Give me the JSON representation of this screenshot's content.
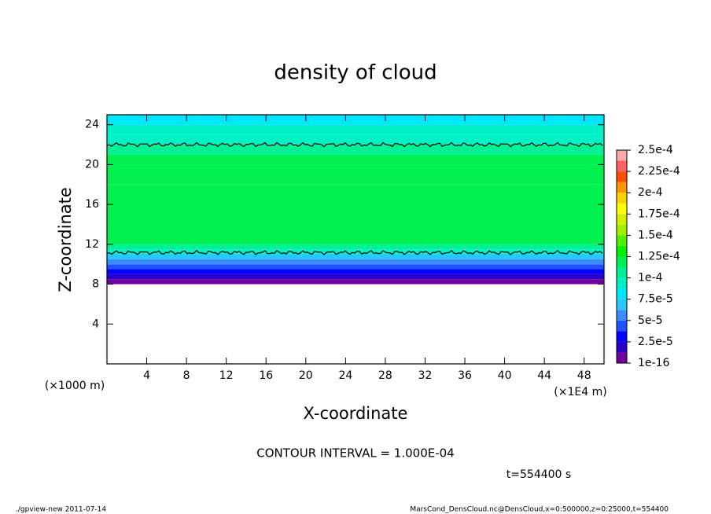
{
  "chart_data": {
    "type": "contour",
    "title": "density of cloud",
    "x_label": "X-coordinate",
    "y_label": "Z-coordinate",
    "x_unit_label": "(×1E4 m)",
    "y_unit_label": "(×1000 m)",
    "xlim": [
      0,
      50
    ],
    "xticks": [
      4,
      8,
      12,
      16,
      20,
      24,
      28,
      32,
      36,
      40,
      44,
      48
    ],
    "ylim": [
      0,
      25
    ],
    "yticks": [
      4,
      8,
      12,
      16,
      20,
      24
    ],
    "z": [
      8,
      8.5,
      9,
      9.5,
      10,
      10.5,
      11,
      11.5,
      12,
      14,
      18,
      20,
      21,
      22,
      23,
      24
    ],
    "values": [
      1e-05,
      1.5e-05,
      3e-05,
      4.5e-05,
      6e-05,
      7.5e-05,
      9.5e-05,
      0.00011,
      0.00012,
      0.000125,
      0.000125,
      0.00012,
      0.00011,
      0.0001,
      9e-05,
      8e-05
    ],
    "colorbar": {
      "levels": [
        {
          "value": 1e-16,
          "label": "1e-16"
        },
        {
          "value": 2.5e-05,
          "label": "2.5e-5"
        },
        {
          "value": 5e-05,
          "label": "5e-5"
        },
        {
          "value": 7.5e-05,
          "label": "7.5e-5"
        },
        {
          "value": 0.0001,
          "label": "1e-4"
        },
        {
          "value": 0.000125,
          "label": "1.25e-4"
        },
        {
          "value": 0.00015,
          "label": "1.5e-4"
        },
        {
          "value": 0.000175,
          "label": "1.75e-4"
        },
        {
          "value": 0.0002,
          "label": "2e-4"
        },
        {
          "value": 0.000225,
          "label": "2.25e-4"
        },
        {
          "value": 0.00025,
          "label": "2.5e-4"
        }
      ],
      "colors": [
        "#7000a0",
        "#2800c8",
        "#0000ff",
        "#1e50ff",
        "#3c8cff",
        "#28c8ff",
        "#00e6ff",
        "#00f0c8",
        "#00f096",
        "#00f050",
        "#00f000",
        "#50f000",
        "#a0f000",
        "#d2f000",
        "#ffff00",
        "#ffd200",
        "#ff9600",
        "#ff5000",
        "#ff6464",
        "#ffaaaa"
      ]
    },
    "contour_interval": {
      "value": 0.0001,
      "label": "CONTOUR INTERVAL = 1.000E-04"
    },
    "time_label": "t=554400 s",
    "footer_left": "./gpview-new  2011-07-14",
    "footer_right": "MarsCond_DensCloud.nc@DensCloud,x=0:500000,z=0:25000,t=554400"
  }
}
